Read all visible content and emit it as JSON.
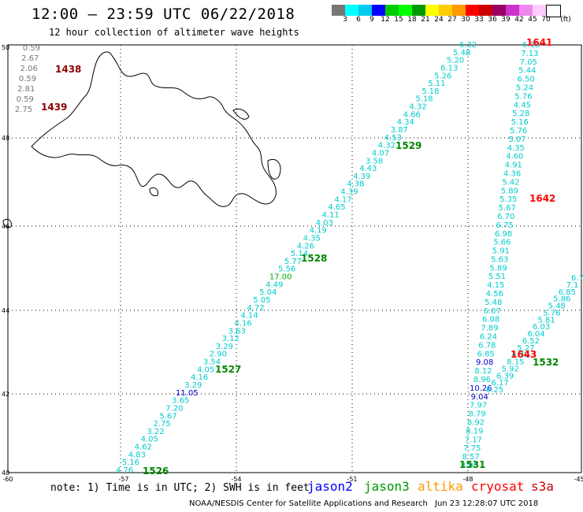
{
  "header": {
    "title": "12:00 – 23:59 UTC 06/22/2018",
    "subtitle": "12 hour collection of altimeter wave heights"
  },
  "color_scale": {
    "unit": "(ft)",
    "labels": [
      "3",
      "6",
      "9",
      "12",
      "15",
      "18",
      "21",
      "24",
      "27",
      "30",
      "33",
      "36",
      "39",
      "42",
      "45",
      "70"
    ],
    "colors": [
      "#777777",
      "#00ffff",
      "#00ccee",
      "#0000ff",
      "#00cc00",
      "#00ff00",
      "#009900",
      "#ffff00",
      "#ffcc00",
      "#ff9900",
      "#ff0000",
      "#cc0000",
      "#990066",
      "#cc33cc",
      "#ee88ee",
      "#ffccff",
      "#ffffff"
    ]
  },
  "axes": {
    "lon_labels": [
      "-60",
      "-57",
      "-54",
      "-51",
      "-48",
      "-45"
    ],
    "lat_labels": [
      "50",
      "48",
      "46",
      "44",
      "42",
      "40"
    ]
  },
  "note": "note: 1) Time is in UTC; 2) SWH is in feet",
  "satellites": [
    {
      "name": "jason2",
      "color": "#0000ff"
    },
    {
      "name": "jason3",
      "color": "#009900"
    },
    {
      "name": "altika",
      "color": "#ff9900"
    },
    {
      "name": "cryosat",
      "color": "#ff0000"
    },
    {
      "name": "s3a",
      "color": "#cc0000"
    }
  ],
  "footer": {
    "credit": "NOAA/NESDIS Center for Satellite Applications and Research",
    "timestamp": "Jun 23 12:28:07 UTC 2018"
  },
  "passes": [
    {
      "id": "1438",
      "color": "#8b0000"
    },
    {
      "id": "1439",
      "color": "#8b0000"
    },
    {
      "id": "1529",
      "color": "#008800"
    },
    {
      "id": "1528",
      "color": "#008800"
    },
    {
      "id": "1527",
      "color": "#008800"
    },
    {
      "id": "1526",
      "color": "#008800"
    },
    {
      "id": "1641",
      "color": "#ff0000"
    },
    {
      "id": "1642",
      "color": "#ff0000"
    },
    {
      "id": "1643",
      "color": "#ff0000"
    },
    {
      "id": "1532",
      "color": "#008800"
    },
    {
      "id": "1531",
      "color": "#008800"
    }
  ],
  "track_grey": [
    "0.59",
    "2.67",
    "2.06",
    "0.59",
    "2.81",
    "0.59",
    "2.75"
  ],
  "track_jason3_a": [
    "6.32",
    "5.48",
    "5.20",
    "6.13",
    "5.26",
    "5.11",
    "5.18",
    "5.18",
    "4.32",
    "4.66",
    "4.34",
    "3.87",
    "4.53",
    "4.32",
    "4.07",
    "3.58",
    "4.43",
    "4.39",
    "4.38",
    "4.39",
    "4.17",
    "4.65",
    "4.11",
    "4.03",
    "4.19",
    "4.35",
    "4.26",
    "5.14",
    "5.77",
    "5.56",
    "17.00",
    "4.49",
    "5.04",
    "5.05",
    "4.72",
    "4.14",
    "4.16",
    "3.63",
    "3.12",
    "3.29",
    "2.90",
    "3.54",
    "4.05",
    "4.16",
    "3.29",
    "11.05",
    "3.65",
    "7.20",
    "5.67",
    "2.75",
    "3.22",
    "4.05",
    "4.62",
    "4.83",
    "5.16",
    "4.76"
  ],
  "track_cryosat": [
    "6.18",
    "7.13",
    "7.05",
    "5.44",
    "6.50",
    "5.24",
    "5.76",
    "4.45",
    "5.28",
    "5.16",
    "5.76",
    "5.07",
    "4.35",
    "4.60",
    "4.91",
    "4.36",
    "5.42",
    "5.89",
    "5.35",
    "5.67",
    "6.70",
    "6.75",
    "6.98",
    "5.66",
    "5.91",
    "5.63",
    "5.89",
    "5.51",
    "4.15",
    "4.56",
    "5.48",
    "6.07",
    "6.08",
    "7.89",
    "6.24",
    "6.78",
    "6.85",
    "9.08",
    "8.12",
    "8.96",
    "10.26",
    "9.04",
    "7.97",
    "8.79",
    "8.92",
    "8.19",
    "7.17",
    "7.75",
    "8.57",
    "8.00"
  ],
  "track_jason3_b": [
    "6.7",
    "7.1",
    "6.85",
    "5.86",
    "5.48",
    "5.76",
    "5.81",
    "6.03",
    "6.04",
    "6.52",
    "5.27",
    "6.39",
    "8.15",
    "5.92",
    "6.39",
    "6.17",
    "6.25"
  ]
}
